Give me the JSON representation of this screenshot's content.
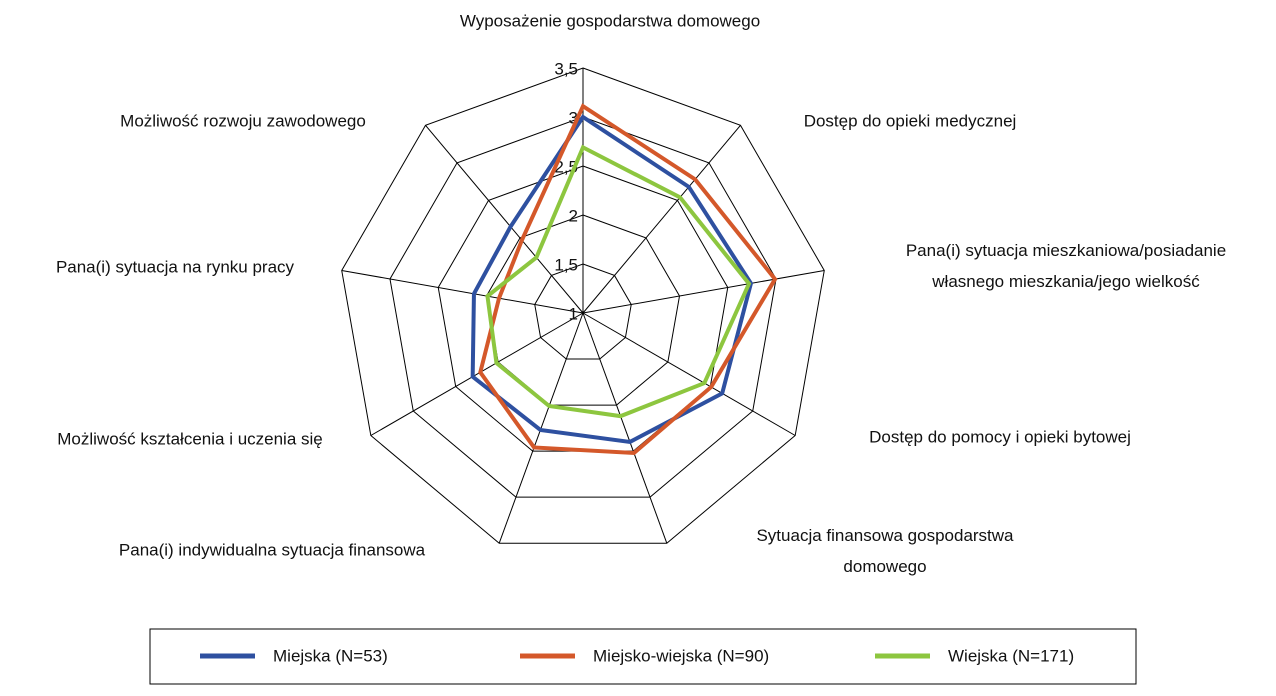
{
  "chart_data": {
    "type": "radar",
    "categories": [
      "Wyposażenie gospodarstwa domowego",
      "Dostęp do opieki medycznej",
      "Pana(i) sytuacja mieszkaniowa/posiadanie własnego mieszkania/jego wielkość",
      "Dostęp do pomocy i opieki bytowej",
      "Sytuacja finansowa gospodarstwa domowego",
      "Pana(i) indywidualna sytuacja finansowa",
      "Możliwość kształcenia i uczenia się",
      "Pana(i) sytuacja na rynku pracy",
      "Możliwość rozwoju zawodowego"
    ],
    "series": [
      {
        "name": "Miejska (N=53)",
        "color": "#2e50a0",
        "values": [
          3.0,
          2.68,
          2.74,
          2.64,
          2.4,
          2.27,
          2.3,
          2.13,
          2.15
        ]
      },
      {
        "name": "Miejsko-wiejska (N=90)",
        "color": "#d4582a",
        "values": [
          3.11,
          2.78,
          2.99,
          2.51,
          2.52,
          2.46,
          2.21,
          1.87,
          1.97
        ]
      },
      {
        "name": "Wiejska (N=171)",
        "color": "#8dc63f",
        "values": [
          2.69,
          2.54,
          2.72,
          2.43,
          2.12,
          2.01,
          2.02,
          1.99,
          1.74
        ]
      }
    ],
    "ylim": [
      1,
      3.5
    ],
    "yticks": [
      1,
      {
        "value": 1.5,
        "label": "1,5"
      },
      2,
      {
        "value": 2.5,
        "label": "2,5"
      },
      3,
      {
        "value": 3.5,
        "label": "3,5"
      }
    ],
    "grid": true
  }
}
